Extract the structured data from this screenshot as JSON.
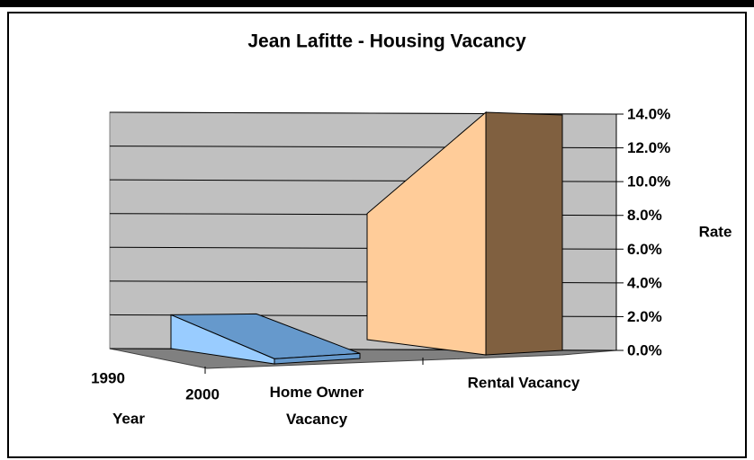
{
  "chart_data": {
    "type": "area3d",
    "title": "Jean Lafitte - Housing Vacancy",
    "categories": [
      "1990",
      "2000"
    ],
    "x_label": "Year",
    "y_label": "Rate",
    "series": [
      {
        "name": "Home Owner Vacancy",
        "color": "#99ccff",
        "values": [
          2.0,
          0.3
        ]
      },
      {
        "name": "Rental Vacancy",
        "color": "#ffcc99",
        "values": [
          8.0,
          14.0
        ]
      }
    ],
    "ylim": [
      0,
      14
    ],
    "yticks": [
      {
        "value": 0,
        "label": "0.0%"
      },
      {
        "value": 2,
        "label": "2.0%"
      },
      {
        "value": 4,
        "label": "4.0%"
      },
      {
        "value": 6,
        "label": "6.0%"
      },
      {
        "value": 8,
        "label": "8.0%"
      },
      {
        "value": 10,
        "label": "10.0%"
      },
      {
        "value": 12,
        "label": "12.0%"
      },
      {
        "value": 14,
        "label": "14.0%"
      }
    ],
    "grid": true
  }
}
